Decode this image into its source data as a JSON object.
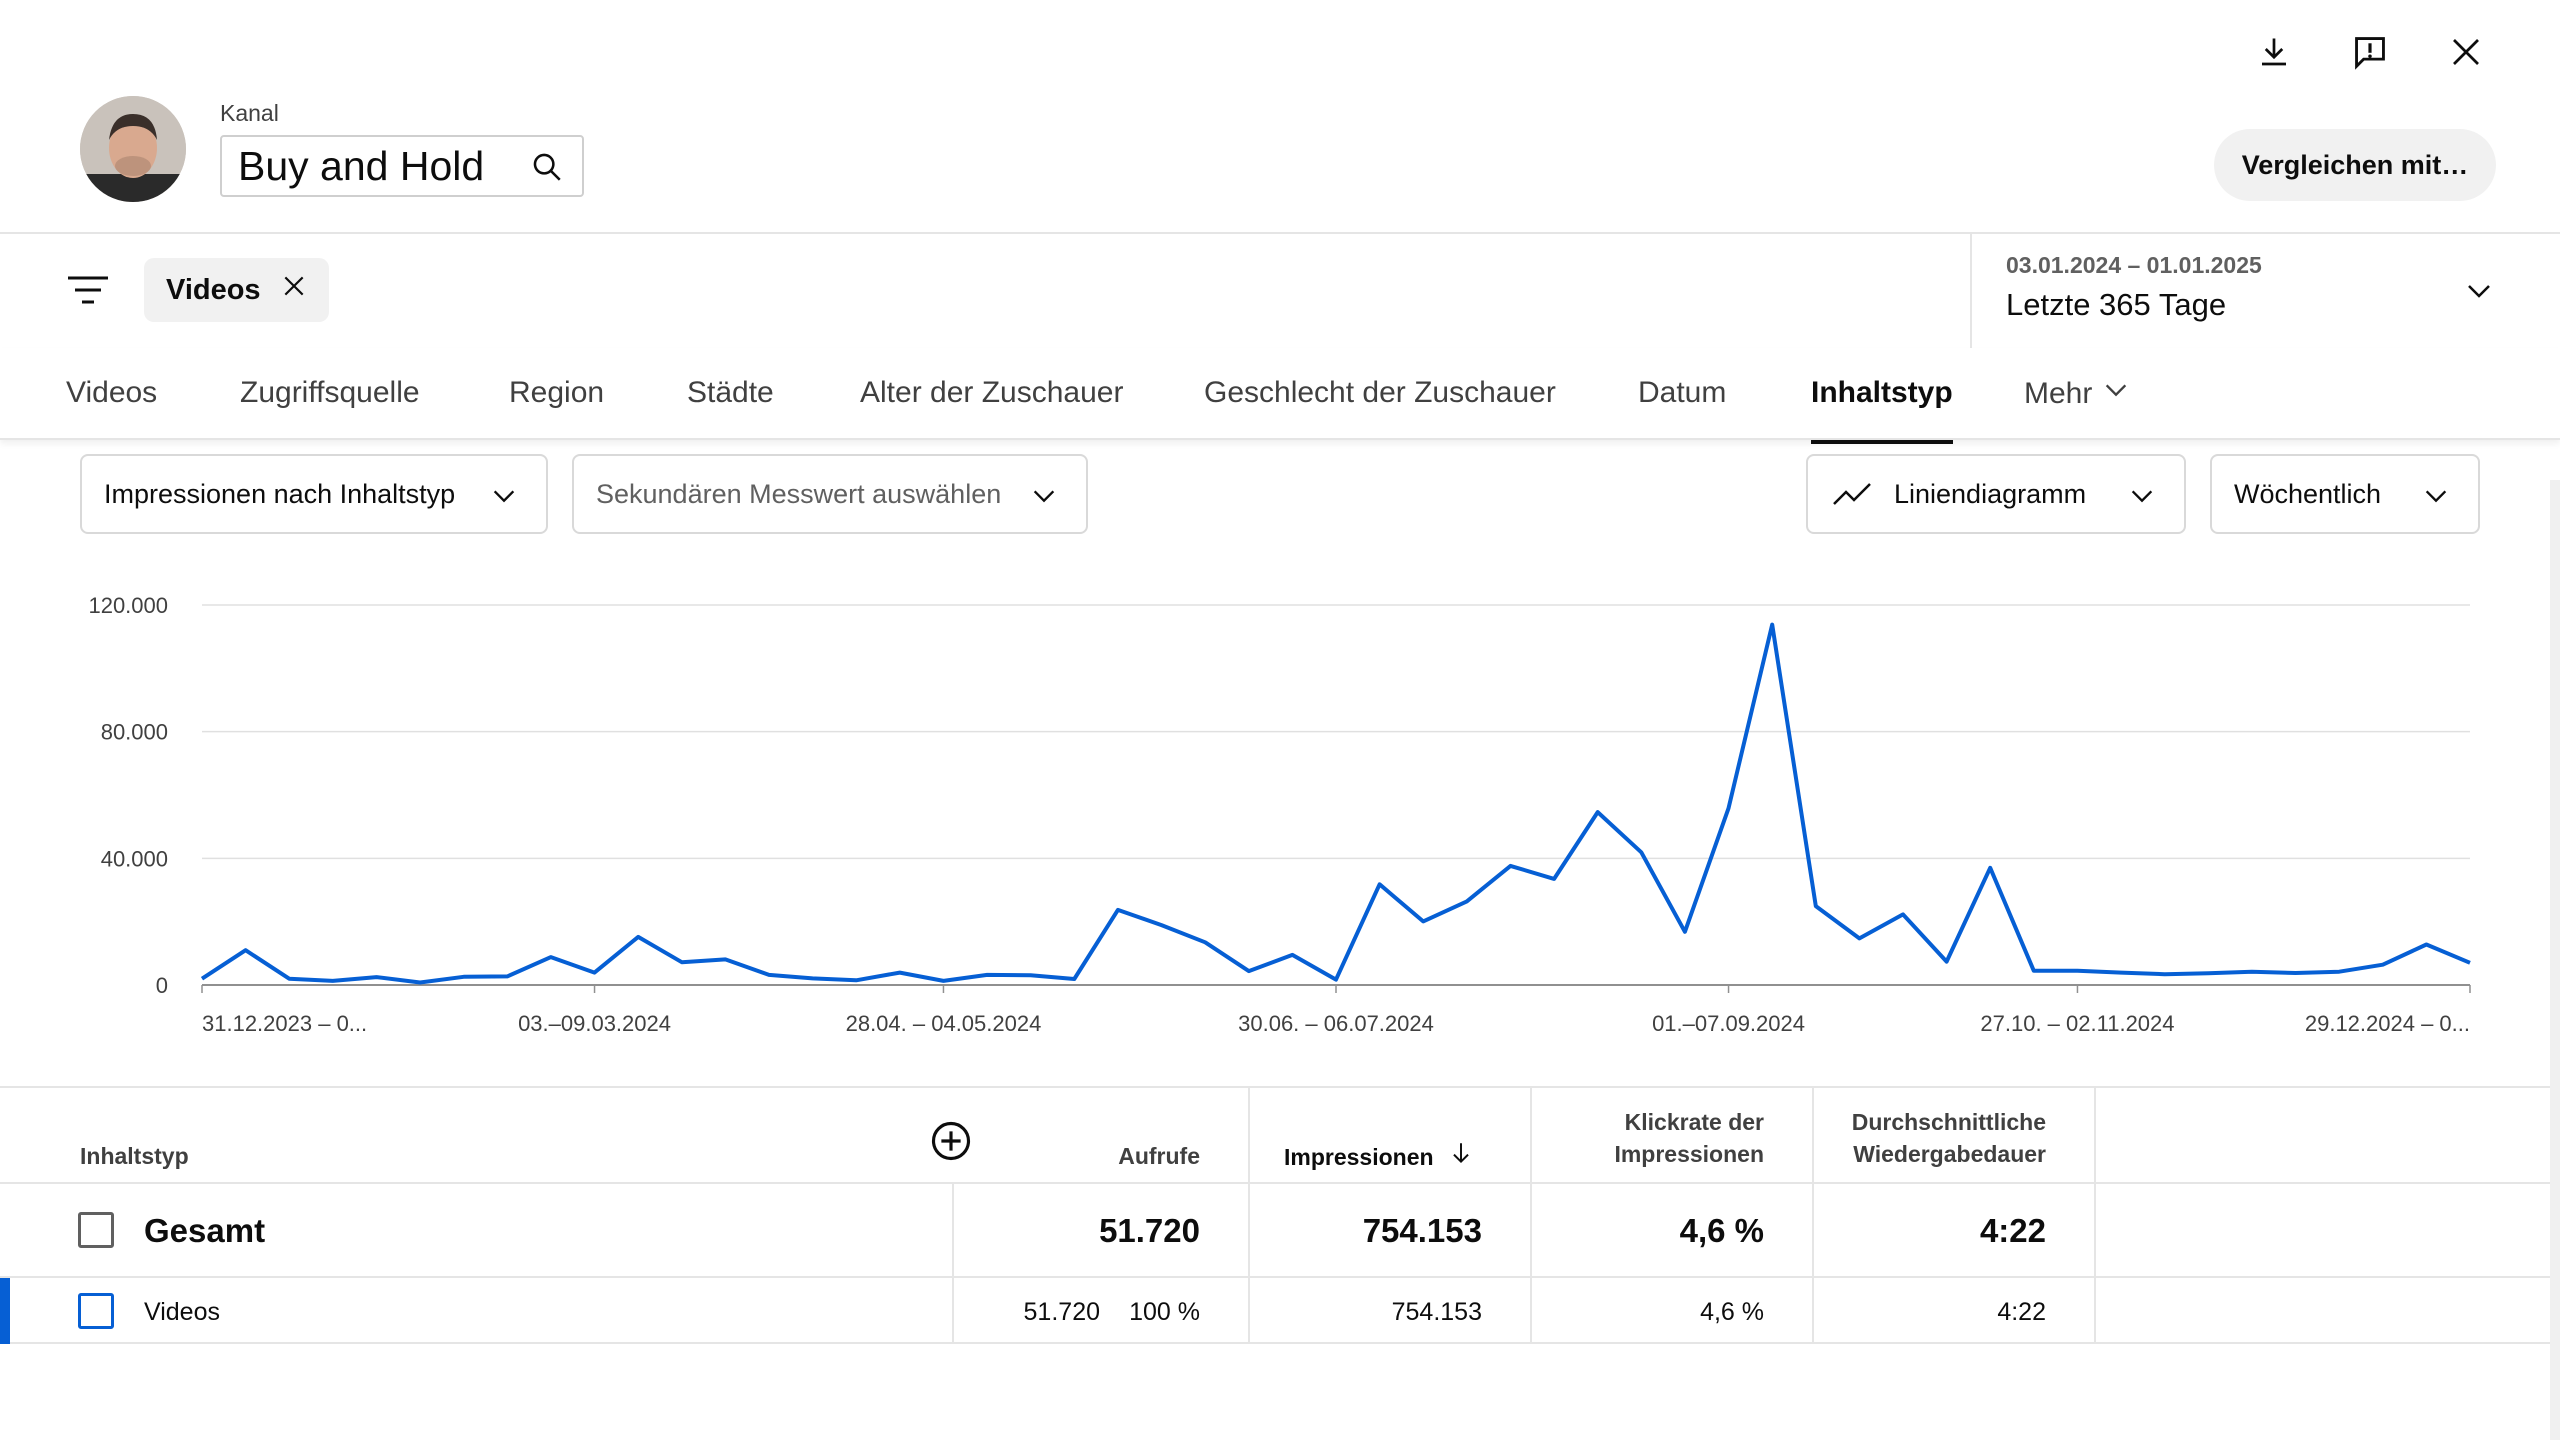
{
  "header": {
    "channel_label": "Kanal",
    "channel_name": "Buy and Hold",
    "compare_button": "Vergleichen mit…",
    "icons": [
      "download-icon",
      "feedback-icon",
      "close-icon"
    ]
  },
  "filter": {
    "chip_label": "Videos",
    "date_range": "03.01.2024 – 01.01.2025",
    "date_label": "Letzte 365 Tage"
  },
  "tabs": [
    {
      "label": "Videos"
    },
    {
      "label": "Zugriffsquelle"
    },
    {
      "label": "Region"
    },
    {
      "label": "Städte"
    },
    {
      "label": "Alter der Zuschauer"
    },
    {
      "label": "Geschlecht der Zuschauer"
    },
    {
      "label": "Datum"
    },
    {
      "label": "Inhaltstyp",
      "active": true
    },
    {
      "label": "Mehr"
    }
  ],
  "controls": {
    "metric": "Impressionen nach Inhaltstyp",
    "secondary": "Sekundären Messwert auswählen",
    "chart_type": "Liniendiagramm",
    "interval": "Wöchentlich"
  },
  "chart_data": {
    "type": "line",
    "ylim": [
      0,
      120000
    ],
    "yticks": [
      "0",
      "40.000",
      "80.000",
      "120.000"
    ],
    "ytick_values": [
      0,
      40000,
      80000,
      120000
    ],
    "xtick_labels": [
      "31.12.2023 – 0...",
      "03.–09.03.2024",
      "28.04. – 04.05.2024",
      "30.06. – 06.07.2024",
      "01.–07.09.2024",
      "27.10. – 02.11.2024",
      "29.12.2024 – 0..."
    ],
    "xtick_indices": [
      0,
      9,
      17,
      26,
      35,
      43,
      52
    ],
    "grid": true,
    "color": "#065fd4",
    "series": [
      {
        "values": [
          2000,
          11000,
          2000,
          1300,
          2500,
          800,
          2600,
          2700,
          8800,
          3900,
          15200,
          7200,
          8100,
          3200,
          2100,
          1500,
          3900,
          1300,
          3200,
          3100,
          1900,
          23700,
          18900,
          13500,
          4400,
          9500,
          1700,
          31800,
          20100,
          26400,
          37600,
          33500,
          54600,
          41900,
          16800,
          55800,
          113800,
          24900,
          14700,
          22300,
          7400,
          37000,
          4500,
          4500,
          3900,
          3400,
          3700,
          4200,
          3800,
          4200,
          6400,
          12800,
          7000
        ]
      }
    ]
  },
  "table": {
    "headers": {
      "content_type": "Inhaltstyp",
      "views": "Aufrufe",
      "impressions": "Impressionen",
      "ctr_line1": "Klickrate der",
      "ctr_line2": "Impressionen",
      "avd_line1": "Durchschnittliche",
      "avd_line2": "Wiedergabedauer"
    },
    "total": {
      "label": "Gesamt",
      "views": "51.720",
      "impressions": "754.153",
      "ctr": "4,6 %",
      "avd": "4:22"
    },
    "rows": [
      {
        "label": "Videos",
        "views": "51.720",
        "views_pct": "100 %",
        "impressions": "754.153",
        "ctr": "4,6 %",
        "avd": "4:22"
      }
    ]
  }
}
